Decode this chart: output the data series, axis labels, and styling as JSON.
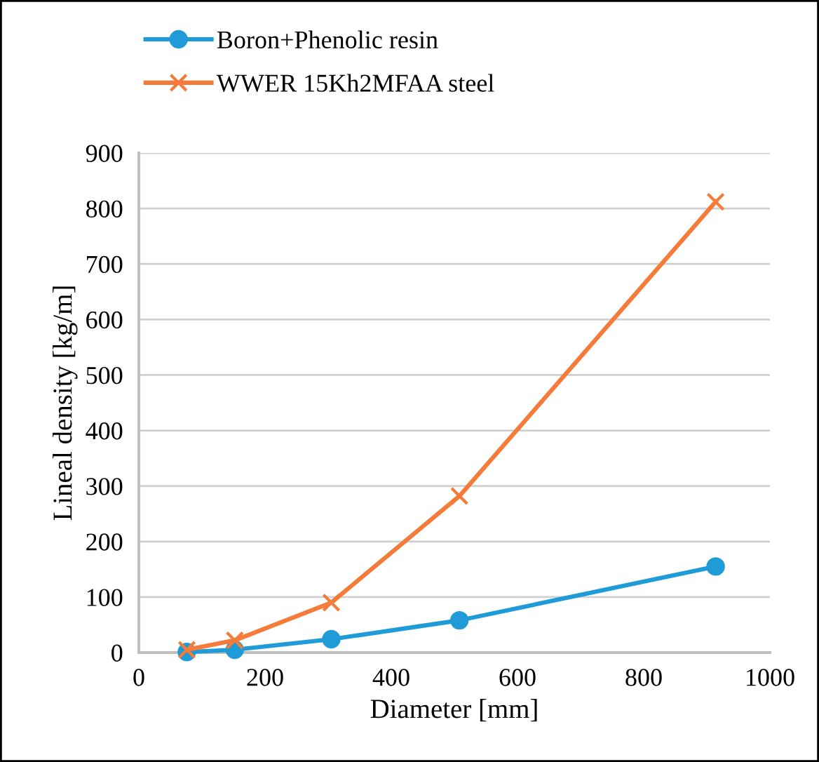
{
  "chart_data": {
    "type": "line",
    "xlabel": "Diameter [mm]",
    "ylabel": "Lineal density [kg/m]",
    "x": [
      76,
      152,
      305,
      508,
      914
    ],
    "series": [
      {
        "name": "Boron+Phenolic resin",
        "color": "#1f9bd7",
        "values": [
          1,
          5,
          24,
          58,
          155
        ],
        "marker": "circle"
      },
      {
        "name": "WWER 15Kh2MFAA steel",
        "color": "#f47b3a",
        "values": [
          5,
          22,
          90,
          282,
          812
        ],
        "marker": "cross"
      }
    ],
    "xlim": [
      0,
      1000
    ],
    "xticks": [
      0,
      200,
      400,
      600,
      800,
      1000
    ],
    "ylim": [
      0,
      900
    ],
    "yticks": [
      0,
      100,
      200,
      300,
      400,
      500,
      600,
      700,
      800,
      900
    ],
    "grid": "y",
    "legend": "top left"
  }
}
